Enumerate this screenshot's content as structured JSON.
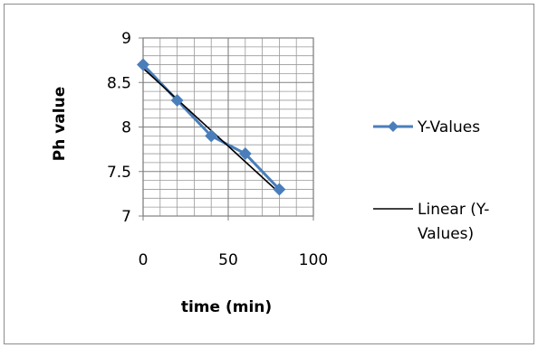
{
  "chart_data": {
    "type": "scatter",
    "title": "",
    "xlabel": "time (min)",
    "ylabel": "Ph value",
    "xlim": [
      0,
      100
    ],
    "ylim": [
      7,
      9
    ],
    "x_ticks": [
      "0",
      "50",
      "100"
    ],
    "y_ticks": [
      "7",
      "7.5",
      "8",
      "8.5",
      "9"
    ],
    "x_major_step": 50,
    "x_minor_step": 10,
    "y_major_step": 0.5,
    "y_minor_step": 0.1,
    "grid": true,
    "legend_position": "right",
    "series": [
      {
        "name": "Y-Values",
        "style": "line-with-diamond-markers",
        "color": "#4a7ebb",
        "x": [
          0,
          20,
          40,
          60,
          80
        ],
        "y": [
          8.7,
          8.3,
          7.9,
          7.7,
          7.3
        ]
      },
      {
        "name": "Linear (Y-Values)",
        "style": "trendline",
        "color": "#000000",
        "x": [
          0,
          80
        ],
        "y": [
          8.66,
          7.26
        ]
      }
    ],
    "legend": [
      {
        "label": "Y-Values"
      },
      {
        "label_line1": "Linear (Y-",
        "label_line2": "Values)"
      }
    ]
  }
}
